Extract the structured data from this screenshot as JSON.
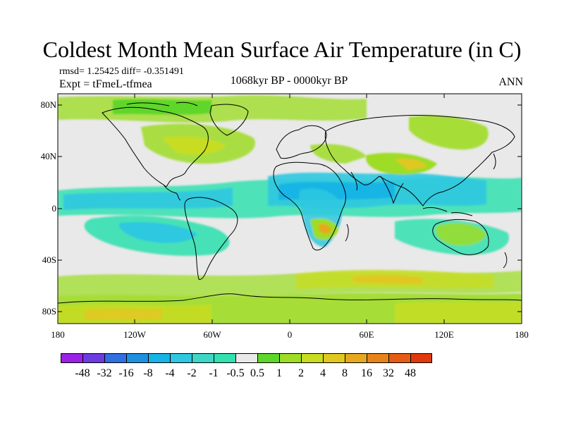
{
  "title": "Coldest Month Mean Surface Air Temperature (in C)",
  "stats": "rmsd= 1.25425 diff= -0.351491",
  "experiment": "Expt = tFmeL-tfmea",
  "period": "1068kyr BP - 0000kyr BP",
  "season": "ANN",
  "lat_labels": [
    "80N",
    "40N",
    "0",
    "40S",
    "80S"
  ],
  "lon_labels": [
    "180",
    "120W",
    "60W",
    "0",
    "60E",
    "120E",
    "180"
  ],
  "colorbar": {
    "colors": [
      "#9a22e6",
      "#6b3de0",
      "#2f6fe0",
      "#1f8fe0",
      "#17b3e6",
      "#2fc8e0",
      "#3ed6c6",
      "#33e0b0",
      "#e9e9e9",
      "#5ed62c",
      "#9edc26",
      "#c8dc22",
      "#e0c820",
      "#e6a81e",
      "#e6841a",
      "#e65c14",
      "#e03a0c"
    ],
    "labels": [
      "-48",
      "-32",
      "-16",
      "-8",
      "-4",
      "-2",
      "-1",
      "-0.5",
      "0.5",
      "1",
      "2",
      "4",
      "8",
      "16",
      "32",
      "48"
    ]
  }
}
